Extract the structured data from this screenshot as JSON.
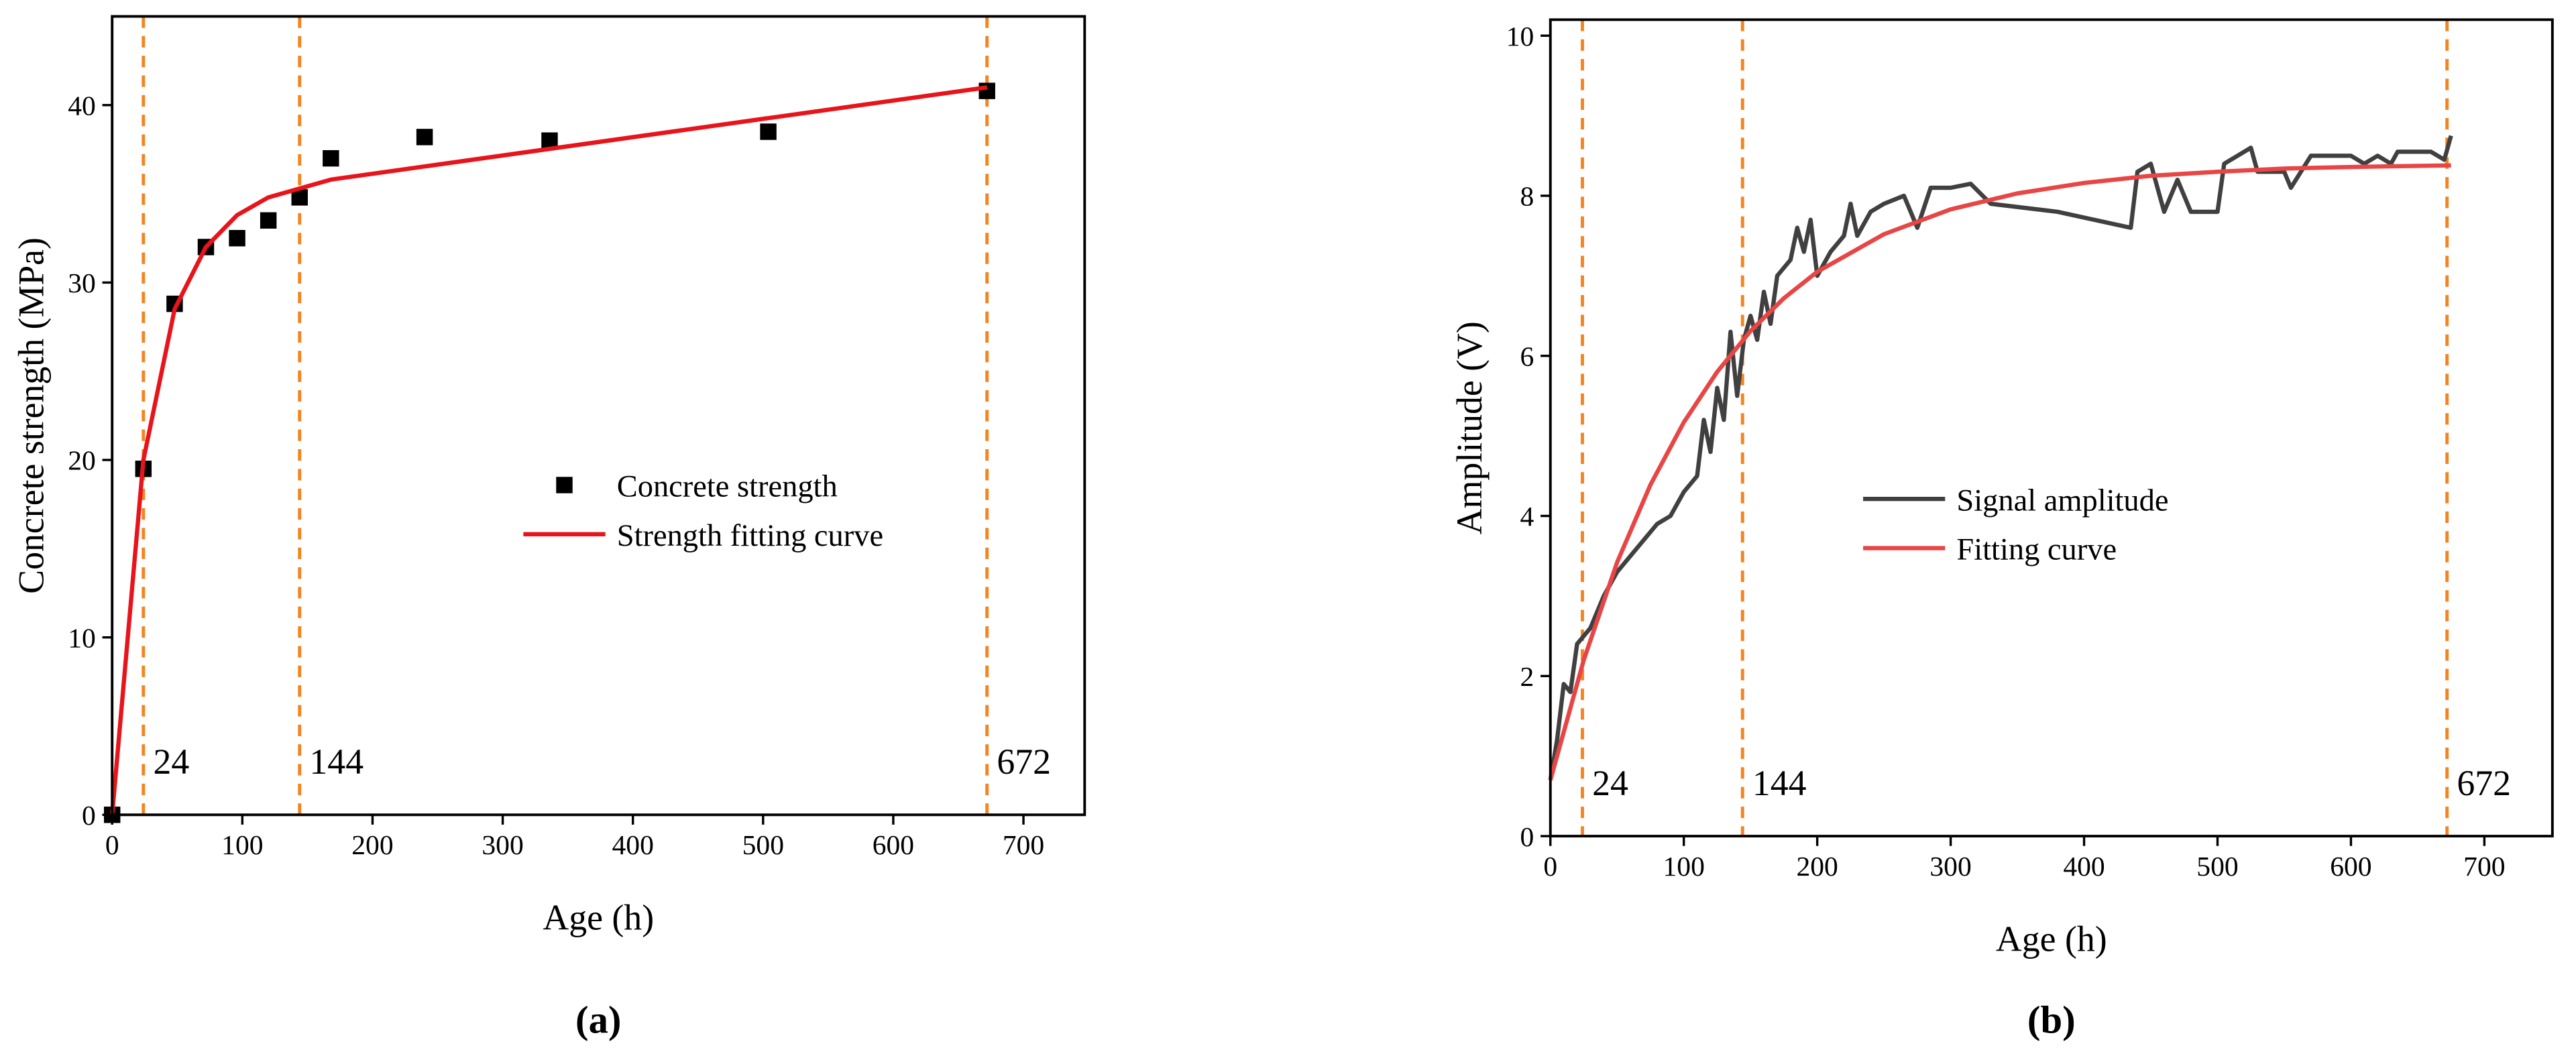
{
  "chart_data": [
    {
      "type": "line",
      "panel_label": "(a)",
      "xlabel": "Age (h)",
      "ylabel": "Concrete strength (MPa)",
      "xlim": [
        0,
        747
      ],
      "ylim": [
        0,
        45
      ],
      "xticks": [
        0,
        100,
        200,
        300,
        400,
        500,
        600,
        700
      ],
      "yticks": [
        0,
        10,
        20,
        30,
        40
      ],
      "vlines": [
        24,
        144,
        672
      ],
      "vline_color": "#f5841f",
      "legend": "center right",
      "series": [
        {
          "name": "Concrete strength",
          "type": "scatter",
          "color": "#000000",
          "x": [
            0,
            24,
            48,
            72,
            96,
            120,
            144,
            168,
            240,
            336,
            504,
            672
          ],
          "values": [
            0,
            19.5,
            28.8,
            32,
            32.5,
            33.5,
            34.8,
            37,
            38.2,
            38,
            38.5,
            40.8
          ]
        },
        {
          "name": "Strength fitting curve",
          "type": "line",
          "color": "#e8141b",
          "x": [
            0,
            24,
            48,
            72,
            96,
            120,
            144,
            168,
            672
          ],
          "values": [
            0,
            20,
            28.5,
            32,
            33.8,
            34.8,
            35.3,
            35.8,
            41
          ]
        }
      ]
    },
    {
      "type": "line",
      "panel_label": "(b)",
      "xlabel": "Age (h)",
      "ylabel": "Amplitude (V)",
      "xlim": [
        0,
        751
      ],
      "ylim": [
        0,
        10.2
      ],
      "xticks": [
        0,
        100,
        200,
        300,
        400,
        500,
        600,
        700
      ],
      "yticks": [
        0,
        2,
        4,
        6,
        8,
        10
      ],
      "vlines": [
        24,
        144,
        672
      ],
      "vline_color": "#f5841f",
      "legend": "center",
      "series": [
        {
          "name": "Signal amplitude",
          "type": "line",
          "color": "#404040",
          "x": [
            0,
            5,
            10,
            15,
            20,
            25,
            30,
            40,
            50,
            60,
            70,
            80,
            90,
            100,
            110,
            115,
            120,
            125,
            130,
            135,
            140,
            145,
            150,
            155,
            160,
            165,
            170,
            180,
            185,
            190,
            195,
            200,
            210,
            220,
            225,
            230,
            240,
            250,
            265,
            275,
            285,
            300,
            315,
            330,
            380,
            435,
            440,
            450,
            460,
            470,
            480,
            500,
            505,
            525,
            530,
            550,
            555,
            570,
            600,
            610,
            620,
            630,
            635,
            660,
            670,
            675
          ],
          "values": [
            0.7,
            1.2,
            1.9,
            1.8,
            2.4,
            2.5,
            2.6,
            3.0,
            3.3,
            3.5,
            3.7,
            3.9,
            4.0,
            4.3,
            4.5,
            5.2,
            4.8,
            5.6,
            5.2,
            6.3,
            5.5,
            6.2,
            6.5,
            6.2,
            6.8,
            6.4,
            7.0,
            7.2,
            7.6,
            7.3,
            7.7,
            7.0,
            7.3,
            7.5,
            7.9,
            7.5,
            7.8,
            7.9,
            8.0,
            7.6,
            8.1,
            8.1,
            8.15,
            7.9,
            7.8,
            7.6,
            8.3,
            8.4,
            7.8,
            8.2,
            7.8,
            7.8,
            8.4,
            8.6,
            8.3,
            8.3,
            8.1,
            8.5,
            8.5,
            8.4,
            8.5,
            8.4,
            8.55,
            8.55,
            8.45,
            8.75
          ]
        },
        {
          "name": "Fitting curve",
          "type": "line",
          "color": "#e84545",
          "x": [
            0,
            25,
            50,
            75,
            100,
            125,
            150,
            175,
            200,
            250,
            300,
            350,
            400,
            450,
            500,
            550,
            600,
            675
          ],
          "values": [
            0.7,
            2.2,
            3.42,
            4.39,
            5.17,
            5.8,
            6.31,
            6.72,
            7.05,
            7.52,
            7.83,
            8.03,
            8.16,
            8.25,
            8.3,
            8.34,
            8.36,
            8.38
          ]
        }
      ]
    }
  ]
}
